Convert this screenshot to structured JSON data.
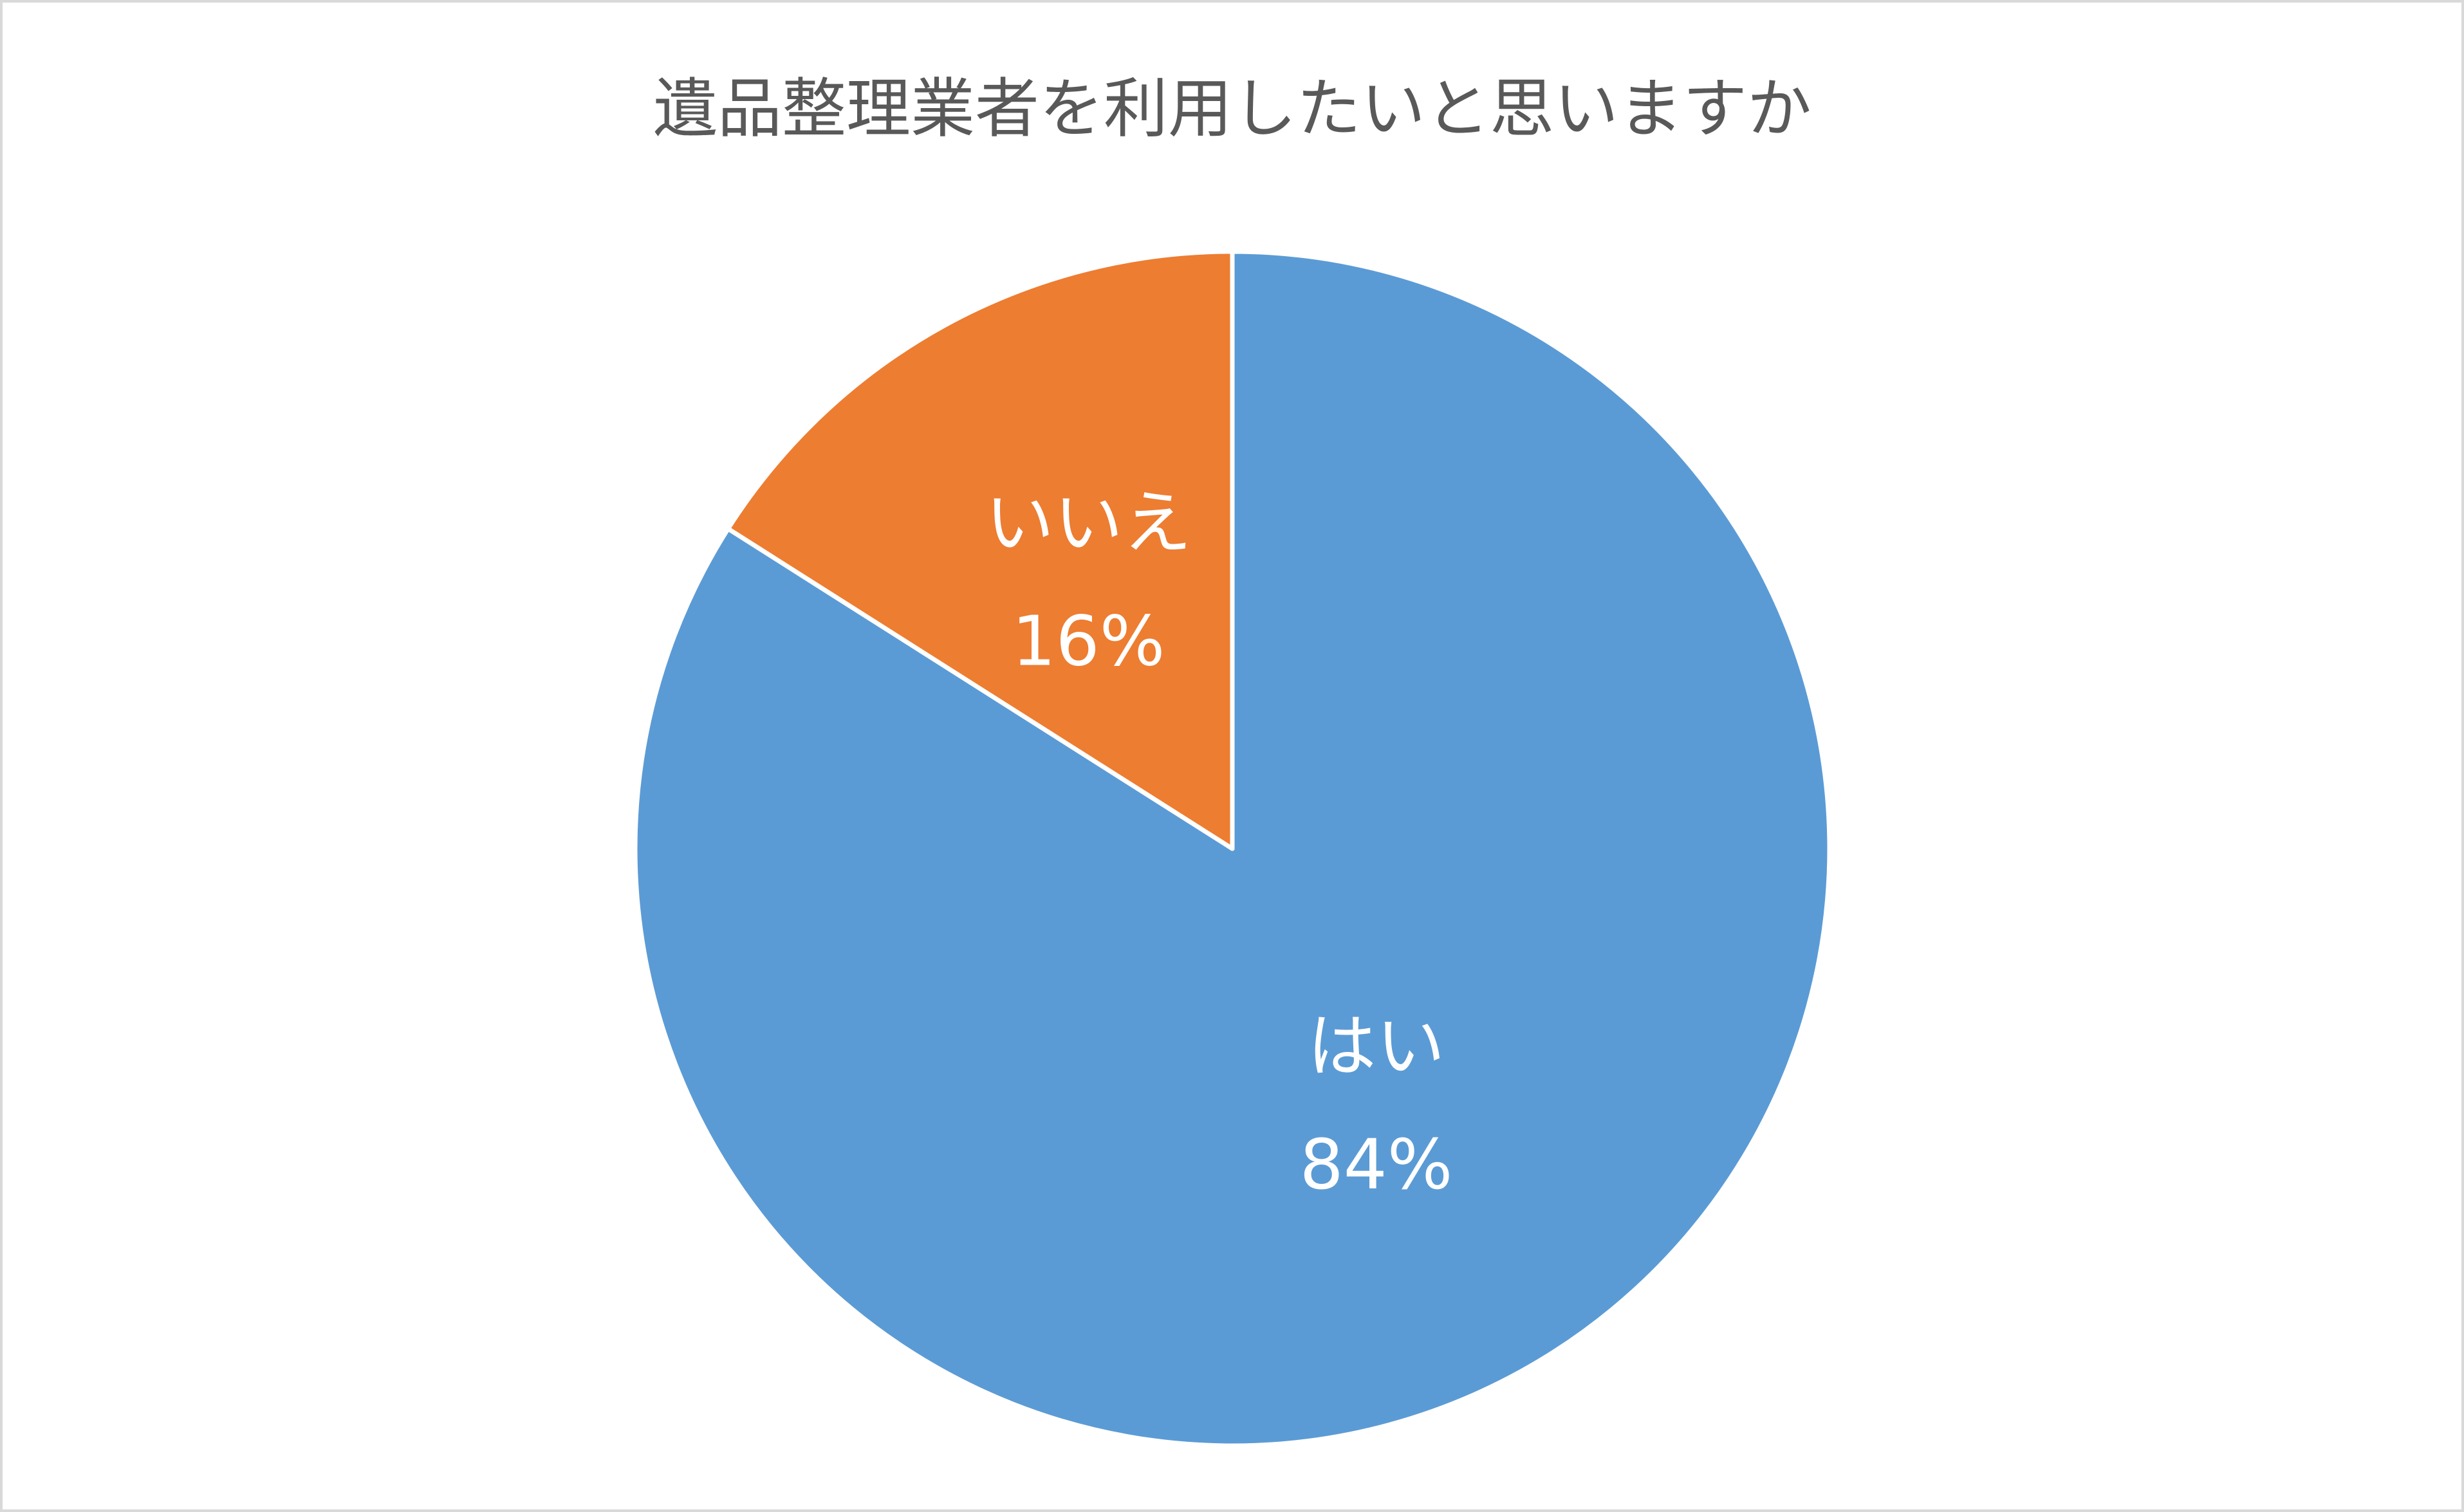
{
  "chart_data": {
    "type": "pie",
    "title": "遺品整理業者を利用したいと思いますか",
    "categories": [
      "はい",
      "いいえ"
    ],
    "values": [
      84,
      16
    ],
    "value_labels": [
      "84%",
      "16%"
    ],
    "colors": [
      "#5b9bd5",
      "#ed7d31"
    ]
  }
}
